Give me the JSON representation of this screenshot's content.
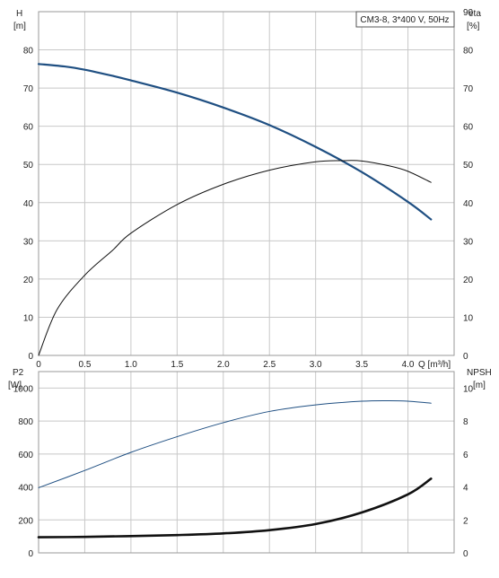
{
  "colors": {
    "background": "#ffffff",
    "grid": "#c8c8c8",
    "frame": "#9a9a9a",
    "black_curve": "#111111",
    "blue_curve": "#1f4f82"
  },
  "chart_data": [
    {
      "type": "line",
      "legend_box": "CM3-8, 3*400 V, 50Hz",
      "legend_placement": "top-right",
      "grid": true,
      "left_axis": {
        "label_line1": "H",
        "label_line2": "[m]",
        "ylim": [
          0,
          90
        ],
        "ticks": [
          "0",
          "10",
          "20",
          "30",
          "40",
          "50",
          "60",
          "70",
          "80"
        ]
      },
      "right_axis": {
        "label_line1": "eta",
        "label_line2": "[%]",
        "ylim": [
          0,
          90
        ],
        "ticks": [
          "0",
          "10",
          "20",
          "30",
          "40",
          "50",
          "60",
          "70",
          "80",
          "90"
        ]
      },
      "x_axis": {
        "label": "Q [m³/h]",
        "xlim": [
          0,
          4.5
        ],
        "ticks": [
          "0",
          "0.5",
          "1.0",
          "1.5",
          "2.0",
          "2.5",
          "3.0",
          "3.5",
          "4.0"
        ]
      },
      "series": [
        {
          "axis": "left",
          "color": "#1f4f82",
          "x": [
            0,
            0.3,
            0.5,
            0.8,
            1.0,
            1.5,
            2.0,
            2.5,
            3.0,
            3.5,
            4.0,
            4.25
          ],
          "y": [
            76.3,
            75.6,
            74.8,
            73.2,
            72.0,
            68.8,
            64.9,
            60.3,
            54.6,
            48.0,
            40.2,
            35.6
          ]
        },
        {
          "axis": "right",
          "color": "#111111",
          "x": [
            0,
            0.2,
            0.5,
            0.8,
            1.0,
            1.5,
            2.0,
            2.5,
            3.0,
            3.3,
            3.5,
            3.8,
            4.0,
            4.25
          ],
          "y": [
            0,
            12,
            21,
            27.5,
            32,
            39.5,
            44.8,
            48.5,
            50.7,
            51.0,
            50.9,
            49.6,
            48.2,
            45.3
          ]
        }
      ]
    },
    {
      "type": "line",
      "grid": true,
      "left_axis": {
        "label_line1": "P2",
        "label_line2": "[W]",
        "ylim": [
          0,
          1100
        ],
        "ticks": [
          "0",
          "200",
          "400",
          "600",
          "800",
          "1000"
        ]
      },
      "right_axis": {
        "label_line1": "NPSH",
        "label_line2": "[m]",
        "ylim": [
          0,
          11
        ],
        "ticks": [
          "0",
          "2",
          "4",
          "6",
          "8",
          "10"
        ]
      },
      "x_axis": {
        "xlim": [
          0,
          4.5
        ]
      },
      "series": [
        {
          "axis": "left",
          "color": "#1f4f82",
          "x": [
            0,
            0.5,
            1.0,
            1.5,
            2.0,
            2.5,
            3.0,
            3.5,
            3.8,
            4.0,
            4.25
          ],
          "y": [
            395,
            500,
            610,
            705,
            790,
            858,
            898,
            920,
            923,
            920,
            908
          ]
        },
        {
          "axis": "right",
          "color": "#111111",
          "x": [
            0,
            0.5,
            1.0,
            1.5,
            2.0,
            2.5,
            3.0,
            3.5,
            4.0,
            4.25
          ],
          "y": [
            0.95,
            0.97,
            1.02,
            1.08,
            1.18,
            1.38,
            1.75,
            2.45,
            3.55,
            4.5
          ]
        }
      ]
    }
  ]
}
